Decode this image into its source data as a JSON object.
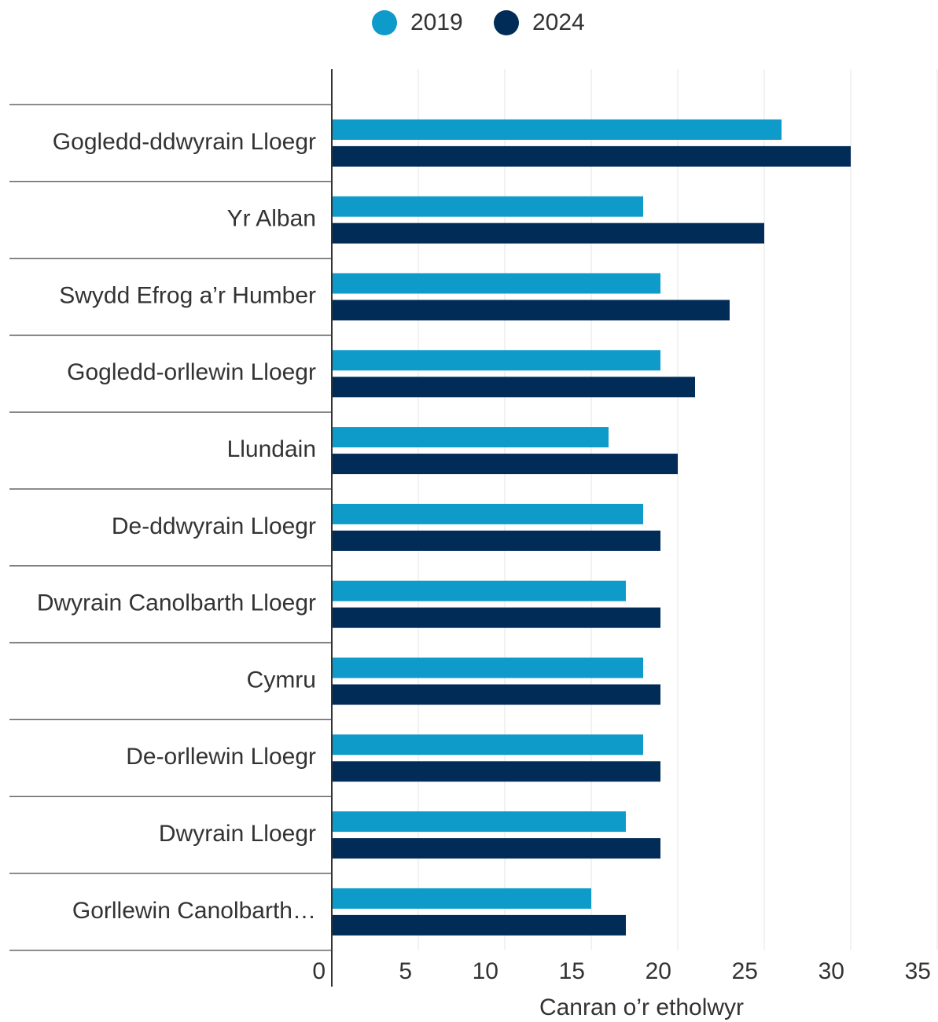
{
  "chart_data": {
    "type": "hbar",
    "x_label": "Canran o’r etholwyr",
    "categories": [
      "Gogledd-ddwyrain Lloegr",
      "Yr Alban",
      "Swydd Efrog a’r Humber",
      "Gogledd-orllewin Lloegr",
      "Llundain",
      "De-ddwyrain Lloegr",
      "Dwyrain Canolbarth Lloegr",
      "Cymru",
      "De-orllewin Lloegr",
      "Dwyrain Lloegr",
      "Gorllewin Canolbarth…"
    ],
    "series": [
      {
        "name": "2019",
        "color": "#0f9bc9",
        "values": [
          26,
          18,
          19,
          19,
          16,
          18,
          17,
          18,
          18,
          17,
          15
        ]
      },
      {
        "name": "2024",
        "color": "#002c57",
        "values": [
          30,
          25,
          23,
          21,
          20,
          19,
          19,
          19,
          19,
          19,
          17
        ]
      }
    ],
    "xlim": [
      0,
      35
    ],
    "xticks": [
      0,
      5,
      10,
      15,
      20,
      25,
      30,
      35
    ],
    "grid": true,
    "legend": "top"
  }
}
